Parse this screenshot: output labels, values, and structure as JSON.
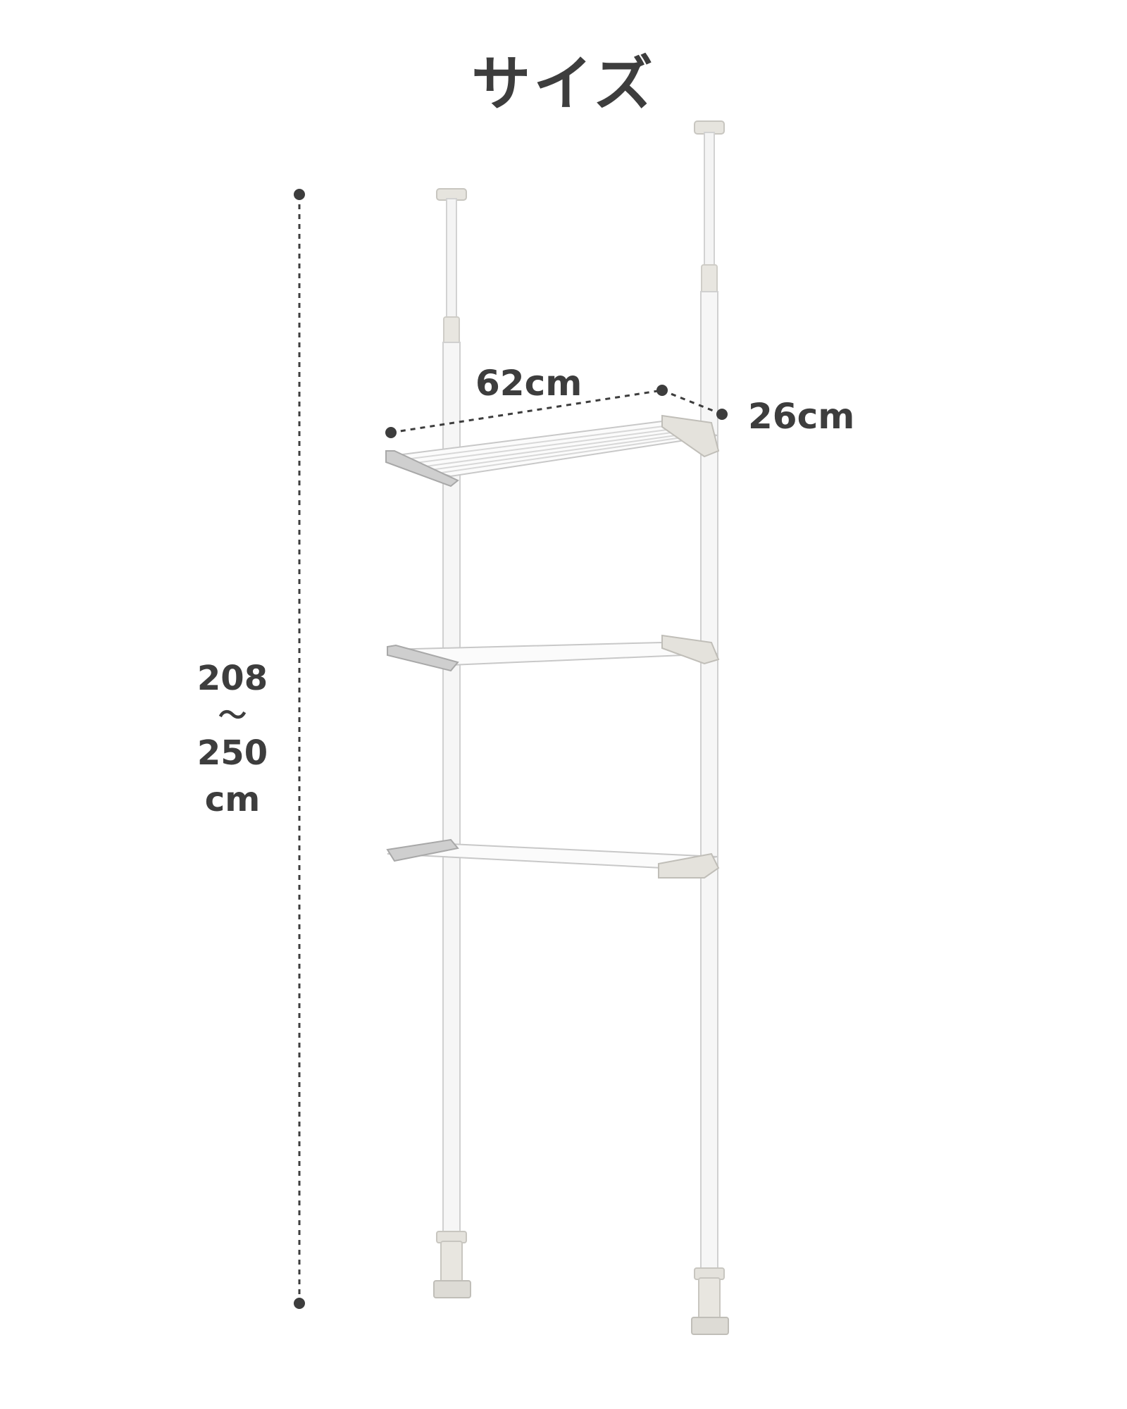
{
  "title": "サイズ",
  "dimensions": {
    "width": "62cm",
    "depth": "26cm",
    "height_min": "208",
    "height_sep": "〜",
    "height_max": "250",
    "height_unit": "cm"
  },
  "colors": {
    "text": "#3d3d3d",
    "rack": "#f2f2f2",
    "rack_edge": "#c8c8c8",
    "bracket": "#e4e2dc"
  }
}
